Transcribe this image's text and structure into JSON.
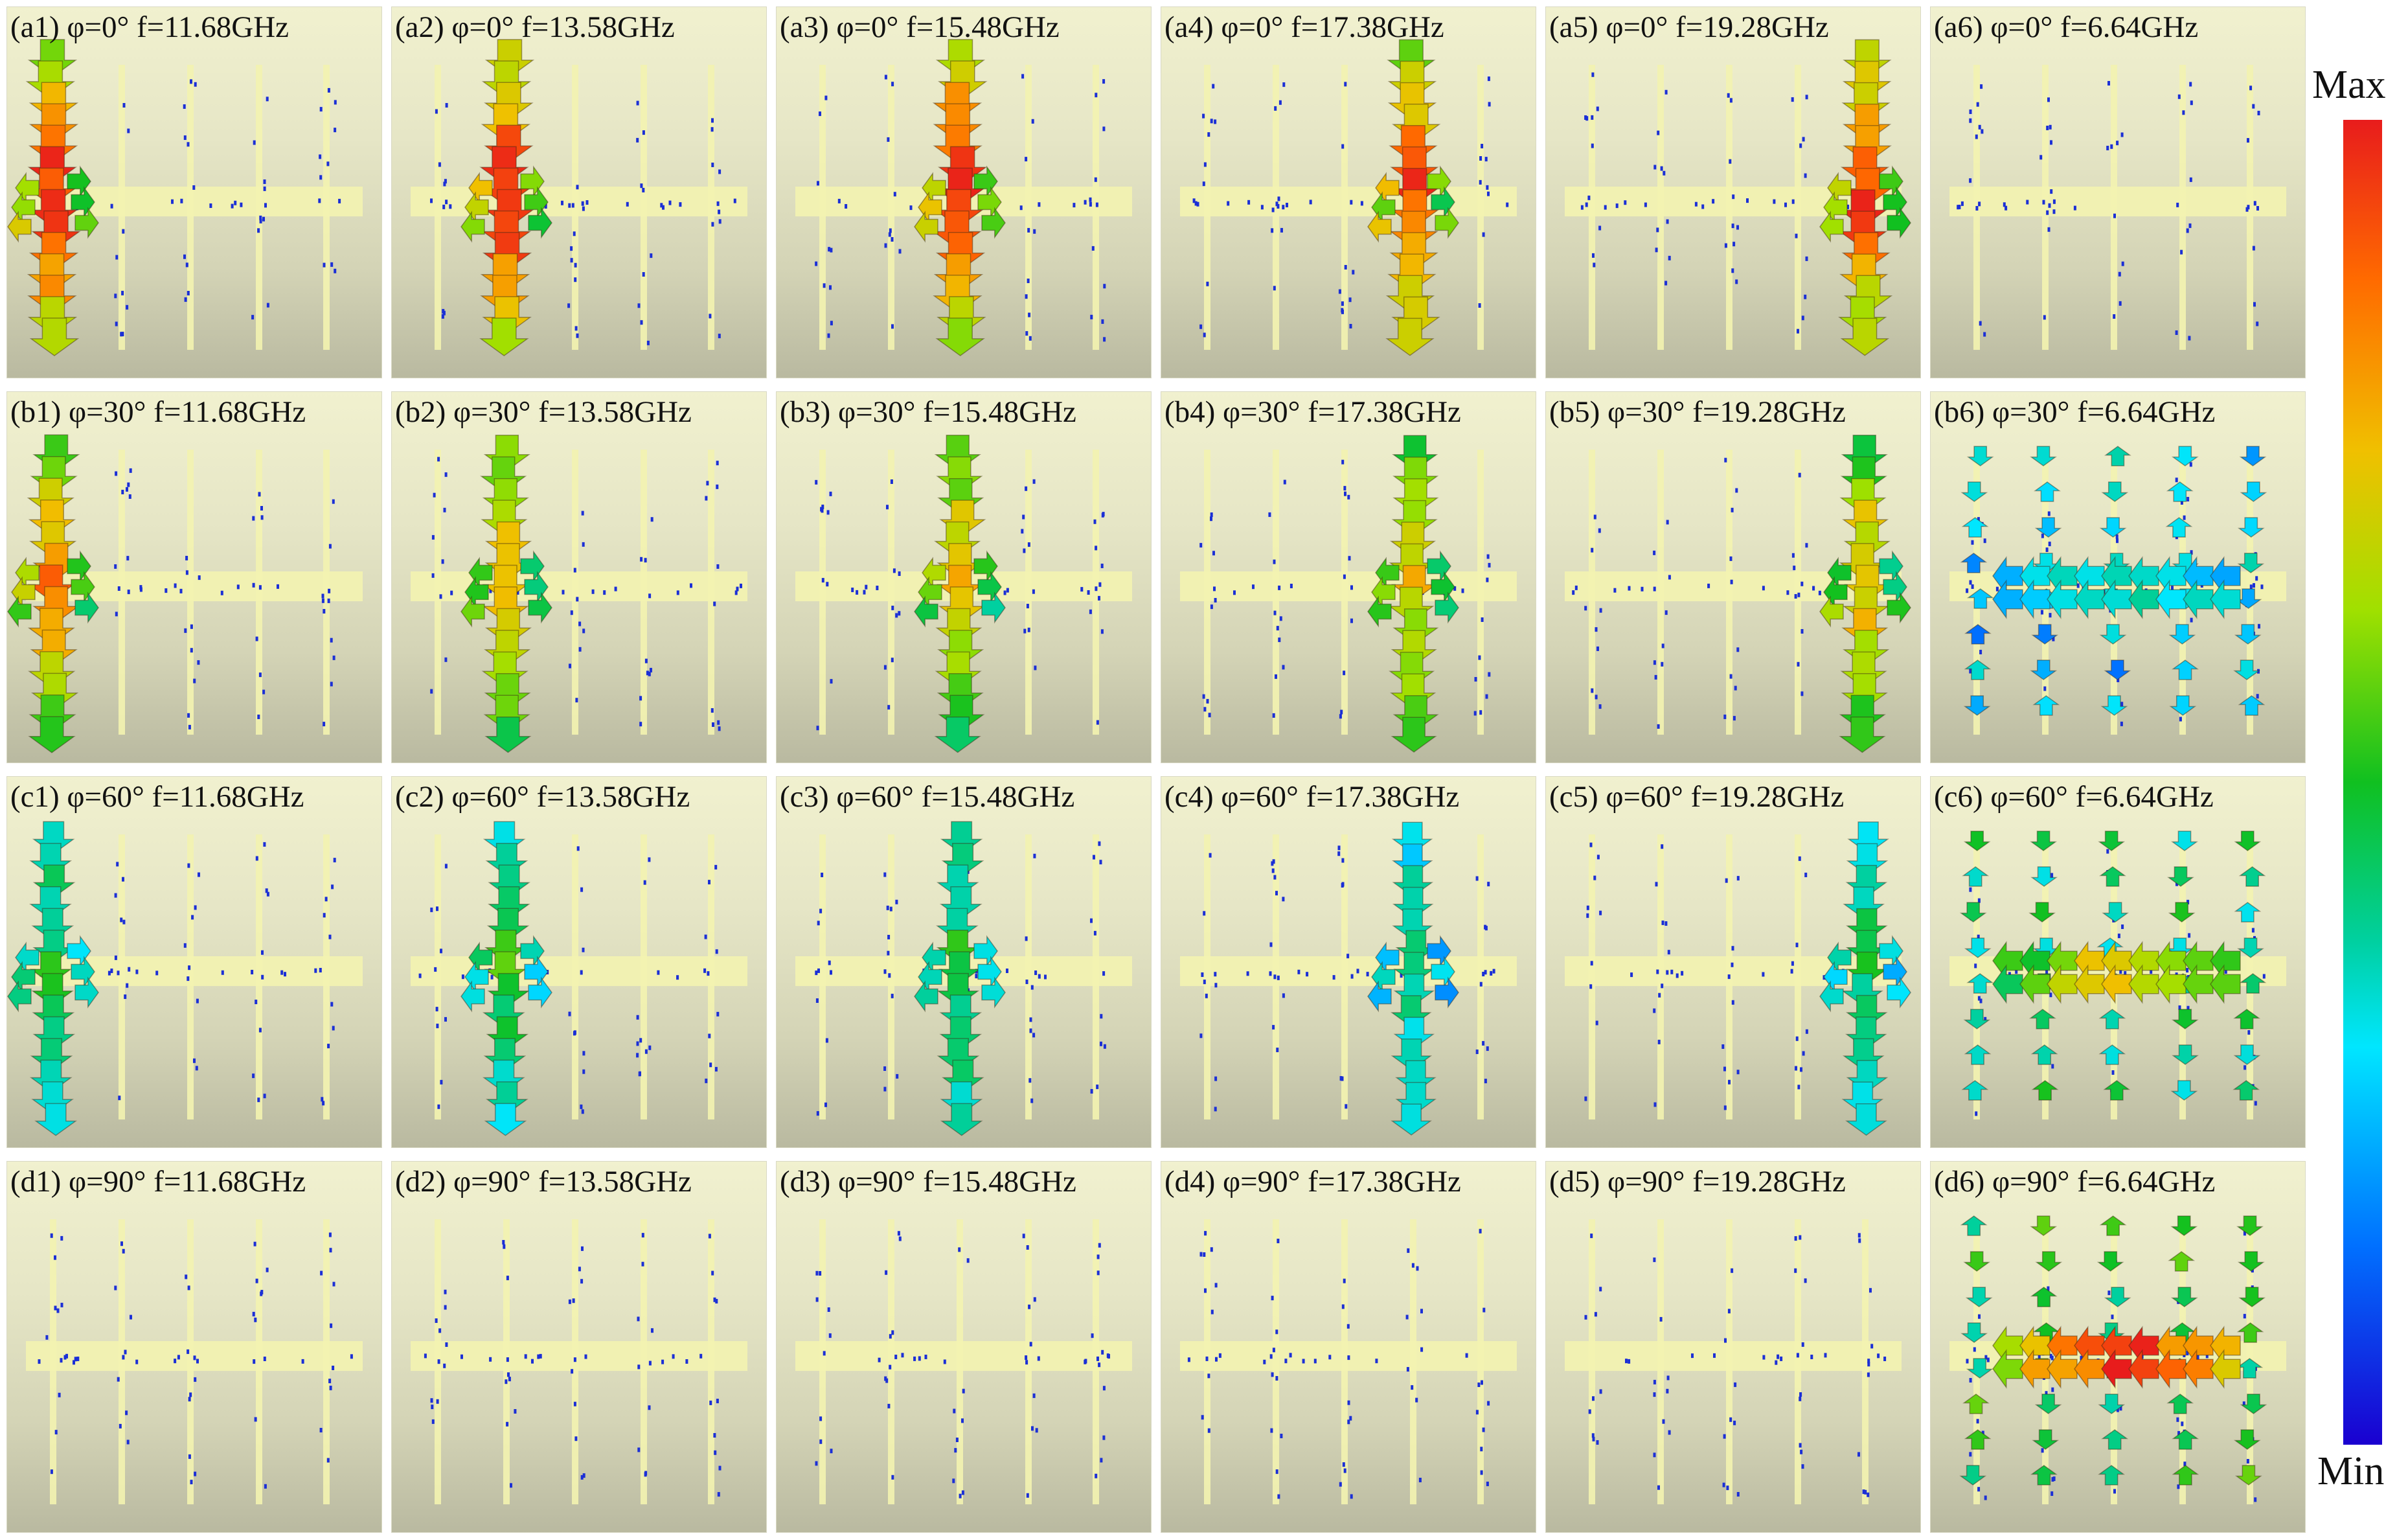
{
  "figure": {
    "rows": [
      "a",
      "b",
      "c",
      "d"
    ],
    "columns": [
      1,
      2,
      3,
      4,
      5,
      6
    ],
    "panels": [
      {
        "id": "a1",
        "label": "(a1) φ=0° f=11.68GHz",
        "phi_deg": 0,
        "freq_ghz": 11.68,
        "active_strip": 1,
        "pattern": "vertical",
        "strength": 1.0
      },
      {
        "id": "a2",
        "label": "(a2) φ=0° f=13.58GHz",
        "phi_deg": 0,
        "freq_ghz": 13.58,
        "active_strip": 2,
        "pattern": "vertical",
        "strength": 1.0
      },
      {
        "id": "a3",
        "label": "(a3) φ=0° f=15.48GHz",
        "phi_deg": 0,
        "freq_ghz": 15.48,
        "active_strip": 3,
        "pattern": "vertical",
        "strength": 1.0
      },
      {
        "id": "a4",
        "label": "(a4) φ=0° f=17.38GHz",
        "phi_deg": 0,
        "freq_ghz": 17.38,
        "active_strip": 4,
        "pattern": "vertical",
        "strength": 0.95
      },
      {
        "id": "a5",
        "label": "(a5) φ=0° f=19.28GHz",
        "phi_deg": 0,
        "freq_ghz": 19.28,
        "active_strip": 5,
        "pattern": "vertical",
        "strength": 0.95
      },
      {
        "id": "a6",
        "label": "(a6) φ=0° f=6.64GHz",
        "phi_deg": 0,
        "freq_ghz": 6.64,
        "active_strip": 0,
        "pattern": "none",
        "strength": 0.0
      },
      {
        "id": "b1",
        "label": "(b1) φ=30° f=11.68GHz",
        "phi_deg": 30,
        "freq_ghz": 11.68,
        "active_strip": 1,
        "pattern": "vertical",
        "strength": 0.85
      },
      {
        "id": "b2",
        "label": "(b2) φ=30° f=13.58GHz",
        "phi_deg": 30,
        "freq_ghz": 13.58,
        "active_strip": 2,
        "pattern": "vertical",
        "strength": 0.8
      },
      {
        "id": "b3",
        "label": "(b3) φ=30° f=15.48GHz",
        "phi_deg": 30,
        "freq_ghz": 15.48,
        "active_strip": 3,
        "pattern": "vertical",
        "strength": 0.8
      },
      {
        "id": "b4",
        "label": "(b4) φ=30° f=17.38GHz",
        "phi_deg": 30,
        "freq_ghz": 17.38,
        "active_strip": 4,
        "pattern": "vertical",
        "strength": 0.75
      },
      {
        "id": "b5",
        "label": "(b5) φ=30° f=19.28GHz",
        "phi_deg": 30,
        "freq_ghz": 19.28,
        "active_strip": 5,
        "pattern": "vertical",
        "strength": 0.8
      },
      {
        "id": "b6",
        "label": "(b6) φ=30° f=6.64GHz",
        "phi_deg": 30,
        "freq_ghz": 6.64,
        "active_strip": 0,
        "pattern": "horizontal",
        "strength": 0.35
      },
      {
        "id": "c1",
        "label": "(c1) φ=60° f=11.68GHz",
        "phi_deg": 60,
        "freq_ghz": 11.68,
        "active_strip": 1,
        "pattern": "vertical",
        "strength": 0.5
      },
      {
        "id": "c2",
        "label": "(c2) φ=60° f=13.58GHz",
        "phi_deg": 60,
        "freq_ghz": 13.58,
        "active_strip": 2,
        "pattern": "vertical",
        "strength": 0.5
      },
      {
        "id": "c3",
        "label": "(c3) φ=60° f=15.48GHz",
        "phi_deg": 60,
        "freq_ghz": 15.48,
        "active_strip": 3,
        "pattern": "vertical",
        "strength": 0.5
      },
      {
        "id": "c4",
        "label": "(c4) φ=60° f=17.38GHz",
        "phi_deg": 60,
        "freq_ghz": 17.38,
        "active_strip": 4,
        "pattern": "vertical",
        "strength": 0.4
      },
      {
        "id": "c5",
        "label": "(c5) φ=60° f=19.28GHz",
        "phi_deg": 60,
        "freq_ghz": 19.28,
        "active_strip": 5,
        "pattern": "vertical",
        "strength": 0.45
      },
      {
        "id": "c6",
        "label": "(c6) φ=60° f=6.64GHz",
        "phi_deg": 60,
        "freq_ghz": 6.64,
        "active_strip": 0,
        "pattern": "horizontal",
        "strength": 0.75
      },
      {
        "id": "d1",
        "label": "(d1) φ=90° f=11.68GHz",
        "phi_deg": 90,
        "freq_ghz": 11.68,
        "active_strip": 0,
        "pattern": "none",
        "strength": 0.0
      },
      {
        "id": "d2",
        "label": "(d2) φ=90° f=13.58GHz",
        "phi_deg": 90,
        "freq_ghz": 13.58,
        "active_strip": 0,
        "pattern": "none",
        "strength": 0.0
      },
      {
        "id": "d3",
        "label": "(d3) φ=90° f=15.48GHz",
        "phi_deg": 90,
        "freq_ghz": 15.48,
        "active_strip": 0,
        "pattern": "none",
        "strength": 0.0
      },
      {
        "id": "d4",
        "label": "(d4) φ=90° f=17.38GHz",
        "phi_deg": 90,
        "freq_ghz": 17.38,
        "active_strip": 0,
        "pattern": "none",
        "strength": 0.0
      },
      {
        "id": "d5",
        "label": "(d5) φ=90° f=19.28GHz",
        "phi_deg": 90,
        "freq_ghz": 19.28,
        "active_strip": 0,
        "pattern": "none",
        "strength": 0.0
      },
      {
        "id": "d6",
        "label": "(d6) φ=90° f=6.64GHz",
        "phi_deg": 90,
        "freq_ghz": 6.64,
        "active_strip": 0,
        "pattern": "horizontal",
        "strength": 1.0
      }
    ]
  },
  "colorbar": {
    "max_label": "Max",
    "min_label": "Min",
    "colors": [
      "#e81c1c",
      "#ff6a00",
      "#f0c000",
      "#a0e000",
      "#10c020",
      "#00d0a0",
      "#00e6ff",
      "#0070ff",
      "#1a00d0"
    ]
  },
  "colors": {
    "background_top": "#f1f1cf",
    "background_bottom": "#b9b9a0",
    "strip": "#f3f3b0",
    "weak_arrow": "#1b2fd6"
  }
}
